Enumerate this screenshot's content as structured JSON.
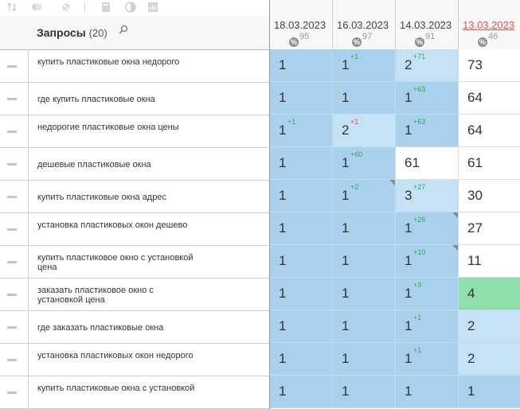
{
  "toolbar": {
    "icons": [
      "sort-icon",
      "toggle-icon",
      "link-icon",
      "calculator-icon",
      "contrast-icon",
      "chart-icon"
    ]
  },
  "header": {
    "title": "Запросы",
    "count": "(20)"
  },
  "dates": [
    {
      "label": "18.03.2023",
      "pct": "95",
      "highlight": false
    },
    {
      "label": "16.03.2023",
      "pct": "97",
      "highlight": false
    },
    {
      "label": "14.03.2023",
      "pct": "91",
      "highlight": false
    },
    {
      "label": "13.03.2023",
      "pct": "46",
      "highlight": true
    }
  ],
  "pct_symbol": "%",
  "rows": [
    {
      "query": "купить пластиковые окна недорого",
      "cells": [
        {
          "v": "1",
          "d": "",
          "s": "dark"
        },
        {
          "v": "1",
          "d": "+1",
          "s": "dark"
        },
        {
          "v": "2",
          "d": "+71",
          "s": "light"
        },
        {
          "v": "73",
          "d": "",
          "s": "white"
        }
      ]
    },
    {
      "query": "где купить пластиковые окна",
      "cells": [
        {
          "v": "1",
          "d": "",
          "s": "dark"
        },
        {
          "v": "1",
          "d": "",
          "s": "dark"
        },
        {
          "v": "1",
          "d": "+63",
          "s": "dark"
        },
        {
          "v": "64",
          "d": "",
          "s": "white"
        }
      ]
    },
    {
      "query": "недорогие пластиковые окна цены",
      "cells": [
        {
          "v": "1",
          "d": "+1",
          "s": "dark"
        },
        {
          "v": "2",
          "d": "+1",
          "dn": true,
          "s": "light"
        },
        {
          "v": "1",
          "d": "+63",
          "s": "dark"
        },
        {
          "v": "64",
          "d": "",
          "s": "white"
        }
      ]
    },
    {
      "query": "дешевые пластиковые окна",
      "cells": [
        {
          "v": "1",
          "d": "",
          "s": "dark"
        },
        {
          "v": "1",
          "d": "+60",
          "s": "dark"
        },
        {
          "v": "61",
          "d": "",
          "s": "white"
        },
        {
          "v": "61",
          "d": "",
          "s": "white"
        }
      ]
    },
    {
      "query": "купить пластиковые окна адрес",
      "cells": [
        {
          "v": "1",
          "d": "",
          "s": "dark"
        },
        {
          "v": "1",
          "d": "+2",
          "s": "dark",
          "c": true
        },
        {
          "v": "3",
          "d": "+27",
          "s": "light"
        },
        {
          "v": "30",
          "d": "",
          "s": "white"
        }
      ]
    },
    {
      "query": "установка пластиковых окон дешево",
      "cells": [
        {
          "v": "1",
          "d": "",
          "s": "dark"
        },
        {
          "v": "1",
          "d": "",
          "s": "dark"
        },
        {
          "v": "1",
          "d": "+26",
          "s": "dark",
          "c": true
        },
        {
          "v": "27",
          "d": "",
          "s": "white"
        }
      ]
    },
    {
      "query": "купить пластиковое окно с установкой цена",
      "cells": [
        {
          "v": "1",
          "d": "",
          "s": "dark"
        },
        {
          "v": "1",
          "d": "",
          "s": "dark"
        },
        {
          "v": "1",
          "d": "+10",
          "s": "dark",
          "c": true
        },
        {
          "v": "11",
          "d": "",
          "s": "white"
        }
      ]
    },
    {
      "query": "заказать пластиковое окно с установкой цена",
      "cells": [
        {
          "v": "1",
          "d": "",
          "s": "dark"
        },
        {
          "v": "1",
          "d": "",
          "s": "dark"
        },
        {
          "v": "1",
          "d": "+3",
          "s": "dark"
        },
        {
          "v": "4",
          "d": "",
          "s": "green"
        }
      ]
    },
    {
      "query": "где заказать пластиковые окна",
      "cells": [
        {
          "v": "1",
          "d": "",
          "s": "dark"
        },
        {
          "v": "1",
          "d": "",
          "s": "dark"
        },
        {
          "v": "1",
          "d": "+1",
          "s": "dark"
        },
        {
          "v": "2",
          "d": "",
          "s": "light"
        }
      ]
    },
    {
      "query": "установка пластиковых окон недорого",
      "cells": [
        {
          "v": "1",
          "d": "",
          "s": "dark"
        },
        {
          "v": "1",
          "d": "",
          "s": "dark"
        },
        {
          "v": "1",
          "d": "+1",
          "s": "dark"
        },
        {
          "v": "2",
          "d": "",
          "s": "light"
        }
      ]
    },
    {
      "query": "купить пластиковые окна с установкой",
      "cells": [
        {
          "v": "1",
          "d": "",
          "s": "dark"
        },
        {
          "v": "1",
          "d": "",
          "s": "dark"
        },
        {
          "v": "1",
          "d": "",
          "s": "dark"
        },
        {
          "v": "1",
          "d": "",
          "s": "dark"
        }
      ]
    }
  ]
}
